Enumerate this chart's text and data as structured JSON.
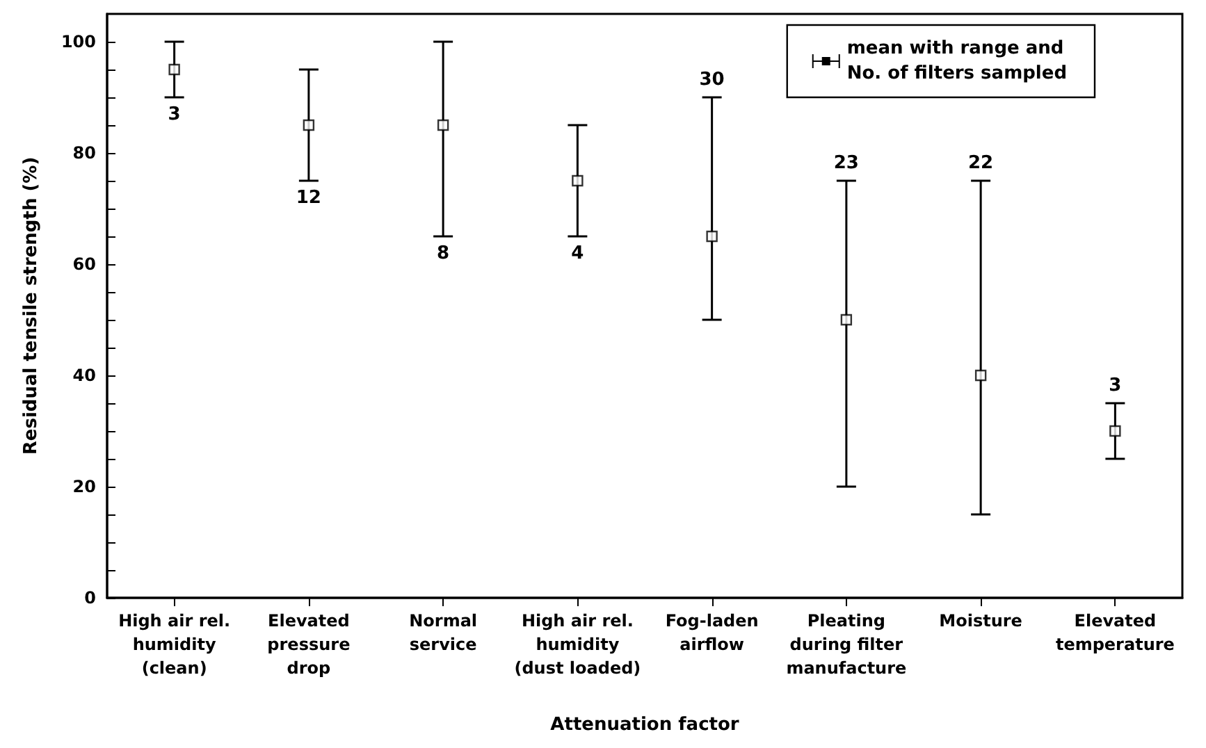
{
  "chart_data": {
    "type": "scatter",
    "xlabel": "Attenuation factor",
    "ylabel": "Residual tensile strength (%)",
    "categories": [
      "High air rel.\nhumidity\n(clean)",
      "Elevated\npressure\ndrop",
      "Normal\nservice",
      "High air rel.\nhumidity\n(dust loaded)",
      "Fog-laden\nairflow",
      "Pleating\nduring filter\nmanufacture",
      "Moisture",
      "Elevated\ntemperature"
    ],
    "series": [
      {
        "name": "mean with range and\nNo. of filters sampled",
        "color": "#000000",
        "values": [
          95,
          85,
          85,
          75,
          65,
          50,
          40,
          30
        ],
        "errors": [
          [
            90,
            100
          ],
          [
            75,
            95
          ],
          [
            65,
            100
          ],
          [
            65,
            85
          ],
          [
            50,
            90
          ],
          [
            20,
            75
          ],
          [
            15,
            75
          ],
          [
            25,
            35
          ]
        ]
      }
    ],
    "ylim": [
      0,
      105
    ],
    "yticks": [
      0,
      {
        "value": 5,
        "label": null
      },
      {
        "value": 10,
        "label": null
      },
      {
        "value": 15,
        "label": null
      },
      20,
      {
        "value": 25,
        "label": null
      },
      {
        "value": 30,
        "label": null
      },
      {
        "value": 35,
        "label": null
      },
      40,
      {
        "value": 45,
        "label": null
      },
      {
        "value": 50,
        "label": null
      },
      {
        "value": 55,
        "label": null
      },
      60,
      {
        "value": 65,
        "label": null
      },
      {
        "value": 70,
        "label": null
      },
      {
        "value": 75,
        "label": null
      },
      80,
      {
        "value": 85,
        "label": null
      },
      {
        "value": 90,
        "label": null
      },
      {
        "value": 95,
        "label": null
      },
      100
    ],
    "annotations": [
      {
        "text": "3",
        "x": "High air rel.\nhumidity\n(clean)",
        "y": 90
      },
      {
        "text": "12",
        "x": "Elevated\npressure\ndrop",
        "y": 75
      },
      {
        "text": "8",
        "x": "Normal\nservice",
        "y": 65
      },
      {
        "text": "4",
        "x": "High air rel.\nhumidity\n(dust loaded)",
        "y": 65
      },
      {
        "text": "30",
        "x": "Fog-laden\nairflow",
        "y": 90
      },
      {
        "text": "23",
        "x": "Pleating\nduring filter\nmanufacture",
        "y": 75
      },
      {
        "text": "22",
        "x": "Moisture",
        "y": 75
      },
      {
        "text": "3",
        "x": "Elevated\ntemperature",
        "y": 35
      }
    ],
    "marker": "square",
    "legend": "top right",
    "grid": false
  }
}
